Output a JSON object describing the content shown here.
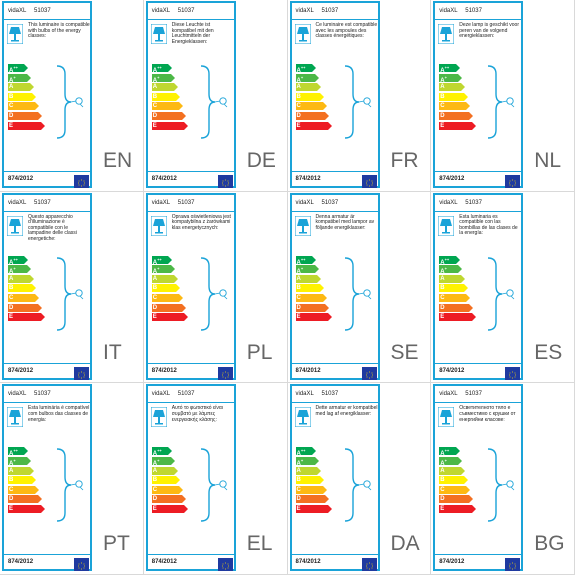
{
  "labels": [
    {
      "lang": "EN",
      "brand": "vidaXL",
      "model": "51037",
      "description": "This luminaire is compatible with bulbs of the energy classes:",
      "regulation": "874/2012"
    },
    {
      "lang": "DE",
      "brand": "vidaXL",
      "model": "51037",
      "description": "Diese Leuchte ist kompatibel mit den Leuchtmitteln der Energieklassen:",
      "regulation": "874/2012"
    },
    {
      "lang": "FR",
      "brand": "vidaXL",
      "model": "51037",
      "description": "Ce luminaire est compatible avec les ampoules des classes énergétiques:",
      "regulation": "874/2012"
    },
    {
      "lang": "NL",
      "brand": "vidaXL",
      "model": "51037",
      "description": "Deze lamp is geschikt voor peren van de volgend energieklassen:",
      "regulation": "874/2012"
    },
    {
      "lang": "IT",
      "brand": "vidaXL",
      "model": "51037",
      "description": "Questo apparecchio d'illuminazione è compatibile con le lampadine delle classi energetiche:",
      "regulation": "874/2012"
    },
    {
      "lang": "PL",
      "brand": "vidaXL",
      "model": "51037",
      "description": "Oprawa oświetleniowa jest kompatybilna z żarówkami klas energetycznych:",
      "regulation": "874/2012"
    },
    {
      "lang": "SE",
      "brand": "vidaXL",
      "model": "51037",
      "description": "Denna armatur är kompatibel med lampor av följande energiklasser:",
      "regulation": "874/2012"
    },
    {
      "lang": "ES",
      "brand": "vidaXL",
      "model": "51037",
      "description": "Esta luminaria es compatible con las bombillas de las clases de la energía:",
      "regulation": "874/2012"
    },
    {
      "lang": "PT",
      "brand": "vidaXL",
      "model": "51037",
      "description": "Esta luminária é compatível com bulbos das classes de energia:",
      "regulation": "874/2012"
    },
    {
      "lang": "EL",
      "brand": "vidaXL",
      "model": "51037",
      "description": "Αυτό το φωτιστικό είναι συμβατό με λάμπες ενεργειακής κλάσης:",
      "regulation": "874/2012"
    },
    {
      "lang": "DA",
      "brand": "vidaXL",
      "model": "51037",
      "description": "Dette armatur er kompatibel med lag af energiklasser:",
      "regulation": "874/2012"
    },
    {
      "lang": "BG",
      "brand": "vidaXL",
      "model": "51037",
      "description": "Осветителното тяло е съвместимо с крушки от енергийни класове:",
      "regulation": "874/2012"
    }
  ],
  "energy_classes": [
    {
      "letter": "A",
      "sup": "++",
      "color": "#00a651",
      "width_pct": 48
    },
    {
      "letter": "A",
      "sup": "+",
      "color": "#4cb847",
      "width_pct": 56
    },
    {
      "letter": "A",
      "sup": "",
      "color": "#bfd730",
      "width_pct": 64
    },
    {
      "letter": "B",
      "sup": "",
      "color": "#fff200",
      "width_pct": 72
    },
    {
      "letter": "C",
      "sup": "",
      "color": "#fdb913",
      "width_pct": 80
    },
    {
      "letter": "D",
      "sup": "",
      "color": "#f37021",
      "width_pct": 88
    },
    {
      "letter": "E",
      "sup": "",
      "color": "#ed1c24",
      "width_pct": 96
    }
  ],
  "colors": {
    "frame": "#1aa3d8",
    "eu_flag": "#1f3aa0",
    "code_text": "#666666"
  }
}
